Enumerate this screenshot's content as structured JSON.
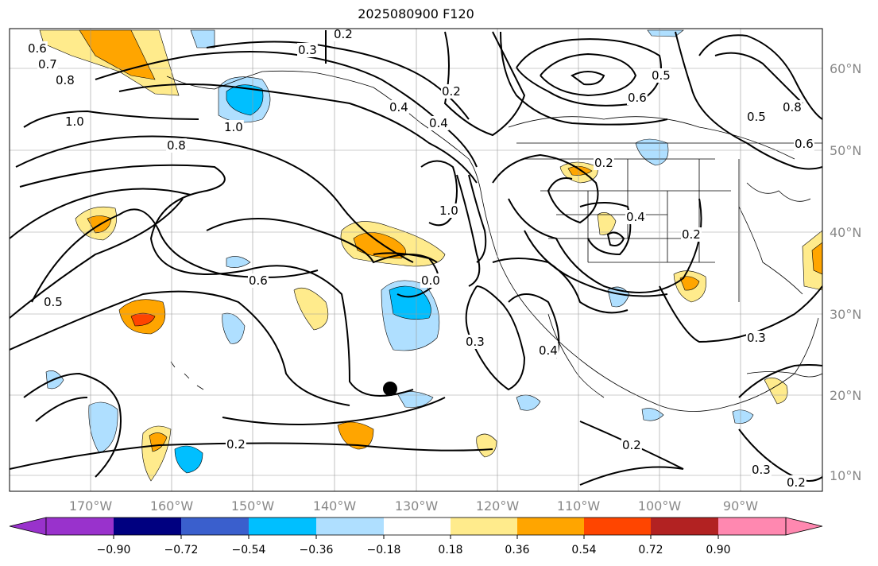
{
  "title": "2025080900 F120",
  "lon_ticks": [
    "170°W",
    "160°W",
    "150°W",
    "140°W",
    "130°W",
    "120°W",
    "110°W",
    "100°W",
    "90°W"
  ],
  "lat_ticks": [
    "60°N",
    "50°N",
    "40°N",
    "30°N",
    "20°N",
    "10°N"
  ],
  "contour_labels": [
    "0.6",
    "0.7",
    "0.8",
    "1.0",
    "0.2",
    "0.3",
    "1.0",
    "0.8",
    "1.0",
    "0.6",
    "0.5",
    "0.2",
    "0.4",
    "0.2",
    "0.4",
    "0.2",
    "0.3",
    "0.6",
    "0.5",
    "0.5",
    "0.6",
    "0.8",
    "0.4",
    "0.3",
    "0.2",
    "0.2",
    "0.2",
    "0.3",
    "0.4",
    "0.0"
  ],
  "colorbar": {
    "ticks": [
      "−0.90",
      "−0.72",
      "−0.54",
      "−0.36",
      "−0.18",
      "0.18",
      "0.36",
      "0.54",
      "0.72",
      "0.90"
    ],
    "colors": [
      "#9932CC",
      "#000080",
      "#3A5FCD",
      "#00BFFF",
      "#AFDFFF",
      "#FFFFFF",
      "#FFEB8C",
      "#FFA500",
      "#FF4500",
      "#B22222",
      "#FF88B0"
    ]
  },
  "anomaly_colors": {
    "pos_light": "#FFEB8C",
    "pos_med": "#FFA500",
    "pos_strong": "#FF4500",
    "neg_light": "#AFDFFF",
    "neg_med": "#00BFFF"
  },
  "marker": "storm-position-dot"
}
